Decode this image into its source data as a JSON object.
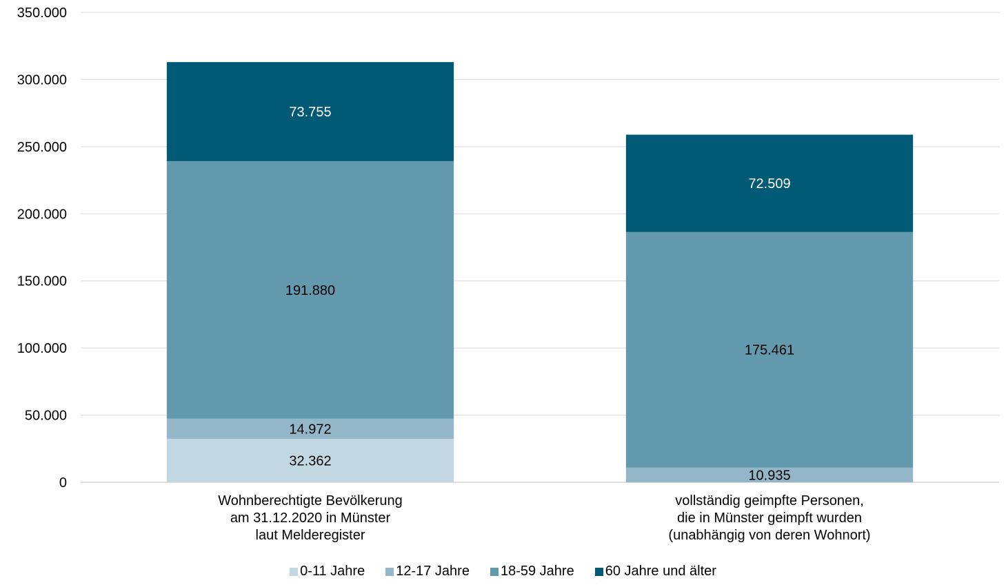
{
  "chart_data": {
    "type": "bar",
    "stacked": true,
    "categories": [
      [
        "Wohnberechtigte Bevölkerung",
        "am 31.12.2020 in Münster",
        "laut Melderegister"
      ],
      [
        "vollständig geimpfte Personen,",
        "die in Münster geimpft wurden",
        "(unabhängig von deren Wohnort)"
      ]
    ],
    "series": [
      {
        "name": "0-11 Jahre",
        "color": "#c2d7e2",
        "label_color": "#000000",
        "values": [
          32362,
          0
        ],
        "labels": [
          "32.362",
          ""
        ]
      },
      {
        "name": "12-17 Jahre",
        "color": "#93b7c8",
        "label_color": "#000000",
        "values": [
          14972,
          10935
        ],
        "labels": [
          "14.972",
          "10.935"
        ]
      },
      {
        "name": "18-59 Jahre",
        "color": "#6299ad",
        "label_color": "#000000",
        "values": [
          191880,
          175461
        ],
        "labels": [
          "191.880",
          "175.461"
        ]
      },
      {
        "name": "60 Jahre und älter",
        "color": "#005a75",
        "label_color": "#ffffff",
        "values": [
          73755,
          72509
        ],
        "labels": [
          "73.755",
          "72.509"
        ]
      }
    ],
    "yticks": [
      "0",
      "50.000",
      "100.000",
      "150.000",
      "200.000",
      "250.000",
      "300.000",
      "350.000"
    ],
    "ylim": [
      0,
      350000
    ],
    "grid": true,
    "legend_position": "bottom"
  }
}
